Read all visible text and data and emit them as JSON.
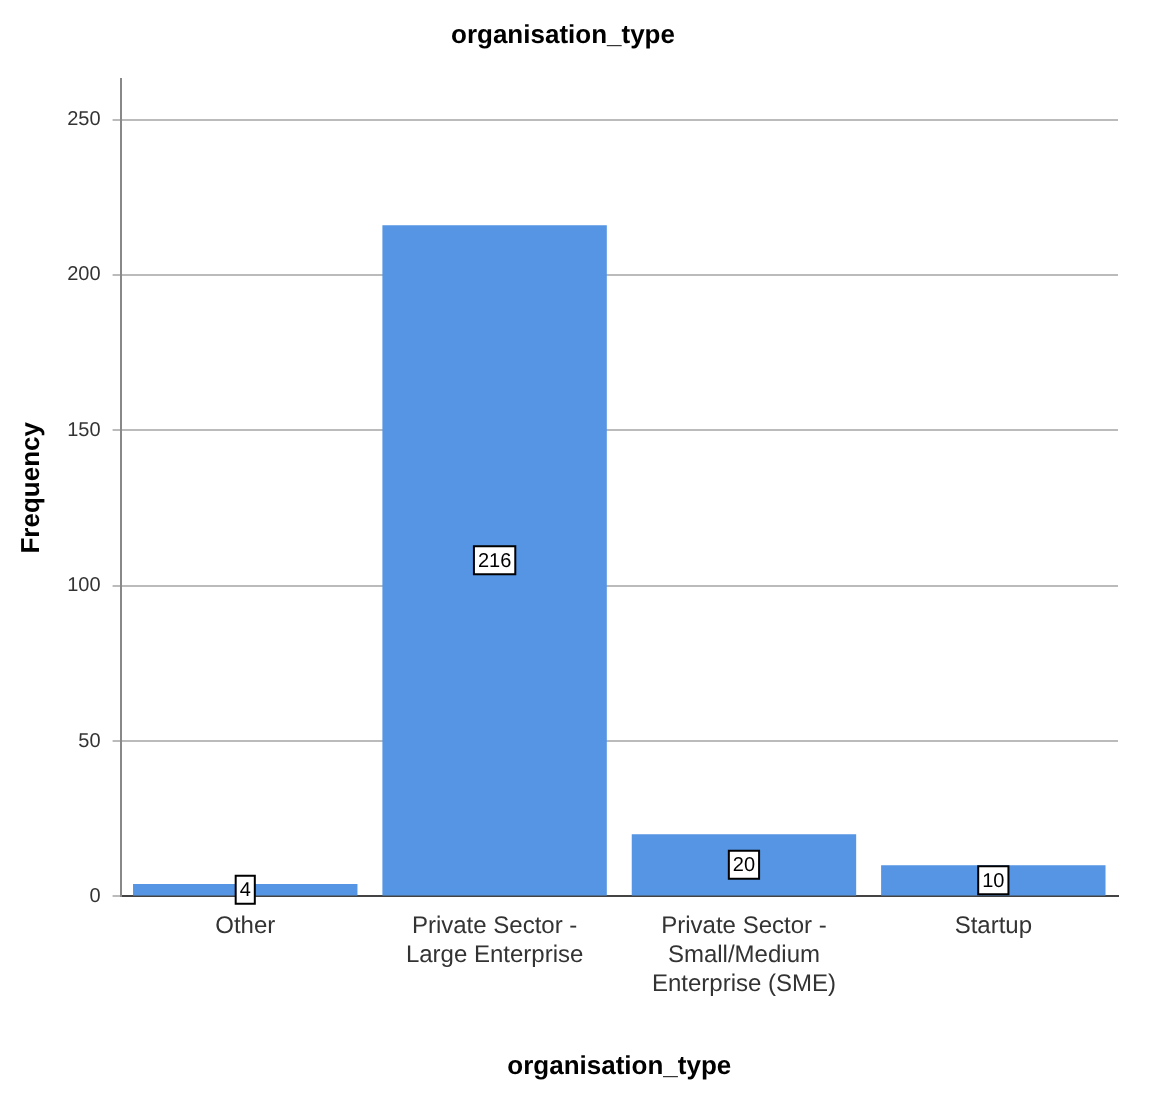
{
  "chart_data": {
    "type": "bar",
    "title": "organisation_type",
    "xlabel": "organisation_type",
    "ylabel": "Frequency",
    "categories": [
      "Other",
      "Private Sector - Large Enterprise",
      "Private Sector - Small/Medium Enterprise (SME)",
      "Startup"
    ],
    "values": [
      4,
      216,
      20,
      10
    ],
    "color": "#5595e3",
    "ylim": [
      0,
      263
    ],
    "yticks": [
      0,
      50,
      100,
      150,
      200,
      250
    ],
    "grid": "y",
    "data_labels": true
  }
}
